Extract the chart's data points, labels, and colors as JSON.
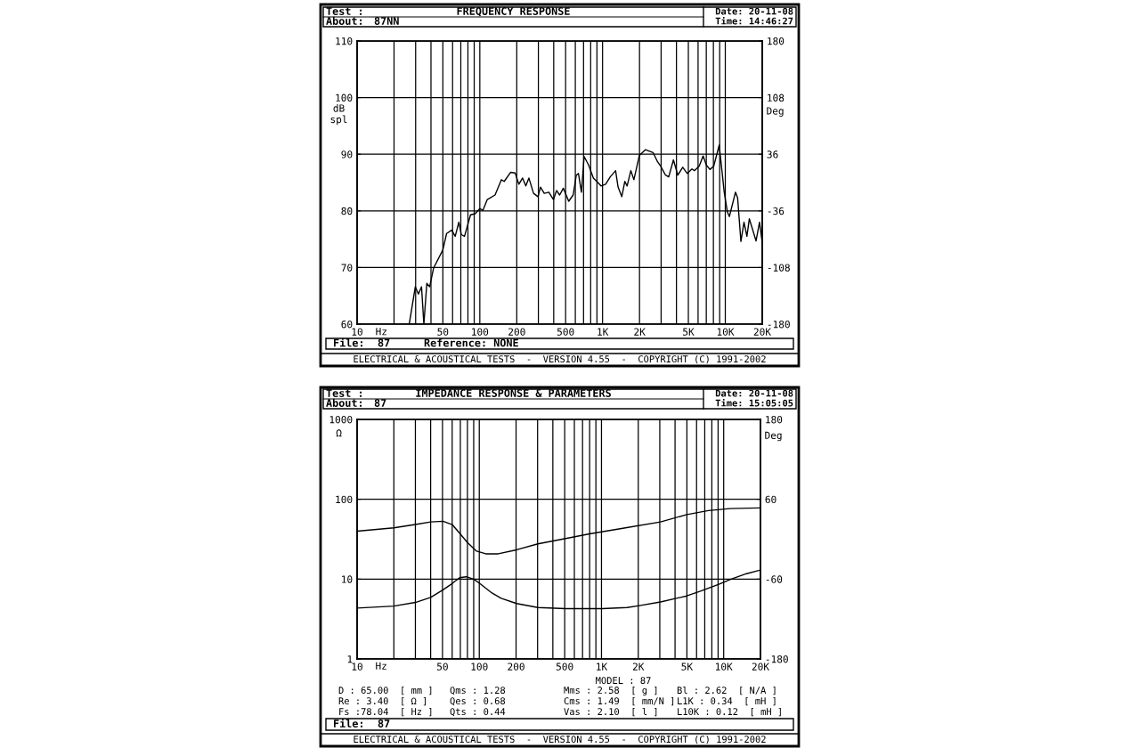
{
  "chart_data": [
    {
      "type": "line",
      "title": "FREQUENCY RESPONSE",
      "xlabel": "Hz",
      "ylabel": "dB\nspl",
      "y2label": "Deg",
      "log": "x",
      "grid": true,
      "xlim": [
        10,
        20000
      ],
      "xticks": [
        10,
        {
          "value": 20,
          "label": null
        },
        {
          "value": 30,
          "label": null
        },
        {
          "value": 40,
          "label": null
        },
        50,
        {
          "value": 60,
          "label": null
        },
        {
          "value": 70,
          "label": null
        },
        {
          "value": 80,
          "label": null
        },
        {
          "value": 90,
          "label": null
        },
        100,
        200,
        {
          "value": 300,
          "label": null
        },
        {
          "value": 400,
          "label": null
        },
        500,
        {
          "value": 600,
          "label": null
        },
        {
          "value": 700,
          "label": null
        },
        {
          "value": 800,
          "label": null
        },
        {
          "value": 900,
          "label": null
        },
        {
          "value": 1000,
          "label": "1K"
        },
        {
          "value": 2000,
          "label": "2K"
        },
        {
          "value": 3000,
          "label": null
        },
        {
          "value": 4000,
          "label": null
        },
        {
          "value": 5000,
          "label": "5K"
        },
        {
          "value": 6000,
          "label": null
        },
        {
          "value": 7000,
          "label": null
        },
        {
          "value": 8000,
          "label": null
        },
        {
          "value": 9000,
          "label": null
        },
        {
          "value": 10000,
          "label": "10K"
        },
        {
          "value": 20000,
          "label": "20K"
        }
      ],
      "ylim": [
        60,
        110
      ],
      "yticks": [
        60,
        70,
        80,
        90,
        100,
        110
      ],
      "y2lim": [
        -180,
        180
      ],
      "y2ticks": [
        -180,
        -108,
        -36,
        36,
        108,
        180
      ],
      "annotations": [
        "Test :",
        "About:",
        "87NN",
        "Date: 20-11-08",
        "Time: 14:46:27",
        "ELECTRICAL & ACOUSTICAL TESTS  -  VERSION 4.55  -  COPYRIGHT (C) 1991-2002",
        "File:",
        "87",
        "Reference: NONE"
      ],
      "series": [
        {
          "color": "#000000",
          "x": [
            26.6,
            29.8,
            31.6,
            33.5,
            35,
            37,
            39,
            42,
            50,
            53.6,
            59,
            63,
            67.5,
            70.7,
            75,
            84,
            91.6,
            100,
            106,
            115,
            133,
            150,
            158,
            178,
            194,
            208,
            223,
            237,
            251,
            274,
            298,
            312,
            335,
            365,
            398,
            422,
            447,
            479,
            530,
            576,
            611,
            636,
            673,
            708,
            769,
            842,
            917,
            971,
            1059,
            1155,
            1277,
            1338,
            1435,
            1519,
            1585,
            1700,
            1800,
            1995,
            2240,
            2580,
            2800,
            2975,
            3260,
            3460,
            3780,
            4100,
            4500,
            4900,
            5350,
            5600,
            6130,
            6600,
            7000,
            7500,
            8050,
            8920,
            9400,
            9800,
            10400,
            10800,
            12100,
            12600,
            13400,
            14200,
            15000,
            15700,
            17800,
            19000,
            20000
          ],
          "values": [
            60,
            66.6,
            65.3,
            66.6,
            60,
            67.2,
            66.6,
            69.9,
            73.1,
            76,
            76.6,
            75.5,
            78,
            75.8,
            75.5,
            79.3,
            79.5,
            80.4,
            80.1,
            82,
            82.8,
            85.5,
            85.2,
            86.8,
            86.7,
            84.7,
            85.8,
            84.4,
            85.8,
            83.1,
            82.5,
            84.2,
            83.1,
            83.3,
            82,
            83.6,
            82.8,
            84,
            81.7,
            82.8,
            86.3,
            86.6,
            83.3,
            89.6,
            88.1,
            85.8,
            85,
            84.4,
            84.7,
            86,
            87.1,
            84.2,
            82.5,
            85.2,
            84.4,
            87.1,
            85.5,
            89.8,
            90.8,
            90.3,
            88.7,
            87.9,
            86.3,
            86,
            89,
            86.3,
            87.7,
            86.6,
            87.4,
            87.1,
            87.9,
            89.7,
            88.1,
            87.3,
            87.9,
            91.6,
            87,
            83.3,
            79.8,
            79,
            83.3,
            82.3,
            74.6,
            78,
            75.5,
            78.6,
            74.7,
            78,
            74.4
          ]
        }
      ]
    },
    {
      "type": "line",
      "title": "IMPEDANCE RESPONSE & PARAMETERS",
      "xlabel": "Hz",
      "ylabel": "Ω",
      "y2label": "Deg",
      "log": "xy",
      "grid": true,
      "xlim": [
        10,
        20000
      ],
      "xticks": [
        10,
        {
          "value": 20,
          "label": null
        },
        {
          "value": 30,
          "label": null
        },
        {
          "value": 40,
          "label": null
        },
        50,
        {
          "value": 60,
          "label": null
        },
        {
          "value": 70,
          "label": null
        },
        {
          "value": 80,
          "label": null
        },
        {
          "value": 90,
          "label": null
        },
        100,
        200,
        {
          "value": 300,
          "label": null
        },
        {
          "value": 400,
          "label": null
        },
        500,
        {
          "value": 600,
          "label": null
        },
        {
          "value": 700,
          "label": null
        },
        {
          "value": 800,
          "label": null
        },
        {
          "value": 900,
          "label": null
        },
        {
          "value": 1000,
          "label": "1K"
        },
        {
          "value": 2000,
          "label": "2K"
        },
        {
          "value": 3000,
          "label": null
        },
        {
          "value": 4000,
          "label": null
        },
        {
          "value": 5000,
          "label": "5K"
        },
        {
          "value": 6000,
          "label": null
        },
        {
          "value": 7000,
          "label": null
        },
        {
          "value": 8000,
          "label": null
        },
        {
          "value": 9000,
          "label": null
        },
        {
          "value": 10000,
          "label": "10K"
        },
        {
          "value": 20000,
          "label": "20K"
        }
      ],
      "ylim": [
        1,
        1000
      ],
      "yticks": [
        1,
        10,
        100,
        1000
      ],
      "y2lim": [
        -180,
        180
      ],
      "y2ticks": [
        -180,
        -60,
        60,
        180
      ],
      "annotations": [
        "Test :",
        "About:",
        "87",
        "Date: 20-11-08",
        "Time: 15:05:05",
        "ELECTRICAL & ACOUSTICAL TESTS  -  VERSION 4.55  -  COPYRIGHT (C) 1991-2002",
        "File:",
        "87",
        "MODEL : 87",
        "D : 65.00  [ mm ]",
        "Re : 3.40  [ Ω ]",
        "Fs :78.04  [ Hz ]",
        "Qms : 1.28",
        "Qes : 0.68",
        "Qts : 0.44",
        "Mms : 2.58  [ g ]",
        "Cms : 1.49  [ mm/N ]",
        "Vas : 2.10  [ l ]",
        "Bl : 2.62  [ N/A ]",
        "L1K : 0.34  [ mH ]",
        "L10K : 0.12  [ mH ]"
      ],
      "series": [
        {
          "color": "#000000",
          "x": [
            10,
            20,
            30,
            40,
            50.5,
            60,
            69,
            78,
            90,
            101,
            127,
            151,
            202,
            302,
            510,
            1015,
            1620,
            2040,
            3040,
            4990,
            6450,
            9140,
            11500,
            15400,
            20000
          ],
          "values": [
            4.34,
            4.6,
            5.1,
            5.9,
            7.35,
            8.8,
            10.4,
            10.7,
            10,
            8.8,
            6.7,
            5.75,
            4.95,
            4.4,
            4.27,
            4.27,
            4.4,
            4.65,
            5.17,
            6.16,
            7.05,
            8.6,
            10,
            11.7,
            13
          ]
        },
        {
          "color": "#000000",
          "axis": "y2",
          "x": [
            10,
            20,
            30,
            40,
            50.5,
            60,
            69,
            80,
            95,
            113,
            143,
            202,
            302,
            510,
            800,
            1460,
            3040,
            5000,
            7500,
            11300,
            20000
          ],
          "values": [
            12,
            17,
            22,
            26,
            27,
            22,
            9,
            -5,
            -18,
            -22,
            -22,
            -16,
            -7,
            1,
            8,
            16,
            26,
            37,
            43,
            46,
            47
          ]
        }
      ]
    }
  ]
}
